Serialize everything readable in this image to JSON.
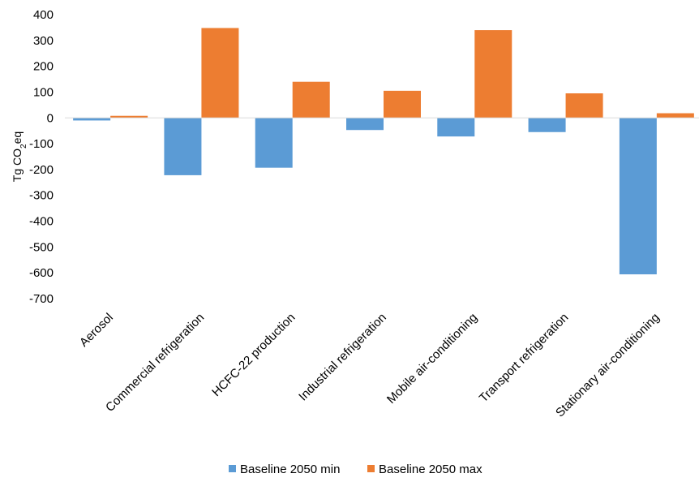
{
  "chart_data": {
    "type": "bar",
    "title": "",
    "xlabel": "",
    "ylabel": {
      "main": "Tg CO",
      "subscript": "2",
      "suffix": "eq"
    },
    "ylim": [
      -700,
      400
    ],
    "yticks": [
      400,
      300,
      200,
      100,
      0,
      -100,
      -200,
      -300,
      -400,
      -500,
      -600,
      -700
    ],
    "grid": false,
    "legend_position": "bottom",
    "categories": [
      "Aerosol",
      "Commercial refrigeration",
      "HCFC-22 production",
      "Industrial refrigeration",
      "Mobile air-conditioning",
      "Transport refrigeration",
      "Stationary air-conditioning"
    ],
    "series": [
      {
        "name": "Baseline 2050 min",
        "color": "#5b9bd5",
        "values": [
          -10,
          -222,
          -193,
          -47,
          -72,
          -55,
          -606
        ]
      },
      {
        "name": "Baseline 2050 max",
        "color": "#ed7d31",
        "values": [
          8,
          348,
          140,
          105,
          340,
          95,
          18
        ]
      }
    ]
  }
}
